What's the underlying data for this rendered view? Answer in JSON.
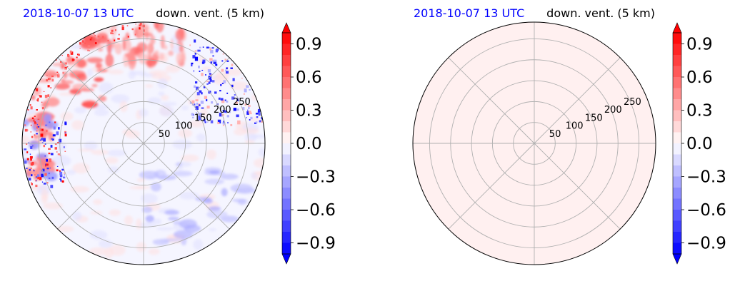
{
  "colors": {
    "title_left": "#0000ff",
    "title_right": "#000000",
    "grid": "#b0b0b0",
    "frame": "#000000"
  },
  "chart_data": [
    {
      "type": "heatmap",
      "projection": "polar",
      "title_left": "2018-10-07 13 UTC",
      "title_right": "down. vent. (5 km)",
      "radial_ticks": [
        "50",
        "100",
        "150",
        "200",
        "250"
      ],
      "radial_tick_values": [
        50,
        100,
        150,
        200,
        250
      ],
      "r_max": 290,
      "angular_grid_deg": 45,
      "grid": true,
      "field": "mixed small positive and negative values; strong positive near north-west and west edge, strong negative patches in the north-east and west, weak negative patches in the south-east",
      "colorbar": {
        "ticks": [
          "0.9",
          "0.6",
          "0.3",
          "0.0",
          "−0.3",
          "−0.6",
          "−0.9"
        ],
        "tick_values": [
          0.9,
          0.6,
          0.3,
          0.0,
          -0.3,
          -0.6,
          -0.9
        ],
        "range": [
          -1.0,
          1.0
        ],
        "levels": 20,
        "colormap": "bwr",
        "extend": "both",
        "position": "right"
      }
    },
    {
      "type": "heatmap",
      "projection": "polar",
      "title_left": "2018-10-07 13 UTC",
      "title_right": "down. vent. (5 km)",
      "radial_ticks": [
        "50",
        "100",
        "150",
        "200",
        "250"
      ],
      "radial_tick_values": [
        50,
        100,
        150,
        200,
        250
      ],
      "r_max": 290,
      "angular_grid_deg": 45,
      "grid": true,
      "field": "uniform value in lowest positive level (0.0 to 0.1)",
      "fill_color": "#fff0f0",
      "colorbar": {
        "ticks": [
          "0.9",
          "0.6",
          "0.3",
          "0.0",
          "−0.3",
          "−0.6",
          "−0.9"
        ],
        "tick_values": [
          0.9,
          0.6,
          0.3,
          0.0,
          -0.3,
          -0.6,
          -0.9
        ],
        "range": [
          -1.0,
          1.0
        ],
        "levels": 20,
        "colormap": "bwr",
        "extend": "both",
        "position": "right"
      }
    }
  ]
}
